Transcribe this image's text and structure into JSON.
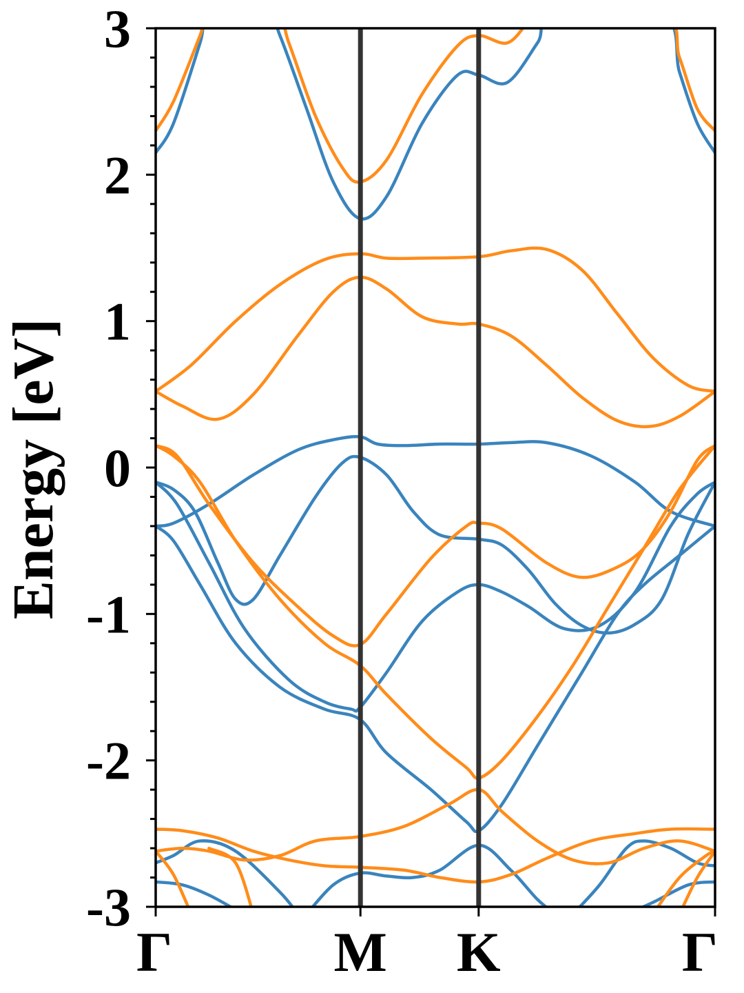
{
  "chart_data": {
    "type": "line",
    "title": "",
    "ylabel": "Energy [eV]",
    "xlabel": "",
    "ylim": [
      -3,
      3
    ],
    "xlim": [
      0,
      3.2
    ],
    "yticks": [
      "-3",
      "-2",
      "-1",
      "0",
      "1",
      "2",
      "3"
    ],
    "yminor_step": 0.2,
    "grid": false,
    "legend": "none",
    "kpoints": [
      {
        "label": "Γ",
        "x": 0
      },
      {
        "label": "M",
        "x": 1.1547
      },
      {
        "label": "K",
        "x": 1.8214
      },
      {
        "label": "Γ",
        "x": 3.1547
      }
    ],
    "colors": {
      "spin_up": "#3a84bd",
      "spin_down": "#ff8c1a",
      "kpath_line": "#333333"
    },
    "series": [
      {
        "group": "spin_up",
        "color": "#3a84bd",
        "points": [
          [
            0,
            2.15
          ],
          [
            0.1,
            2.35
          ],
          [
            0.25,
            2.9
          ],
          [
            0.3,
            3.1
          ],
          [
            0.6,
            3.2
          ],
          [
            0.7,
            2.95
          ],
          [
            0.85,
            2.45
          ],
          [
            1.0,
            1.95
          ],
          [
            1.15,
            1.7
          ],
          [
            1.3,
            1.85
          ],
          [
            1.5,
            2.35
          ],
          [
            1.7,
            2.68
          ],
          [
            1.82,
            2.68
          ],
          [
            1.98,
            2.63
          ],
          [
            2.15,
            2.9
          ],
          [
            2.25,
            3.1
          ],
          [
            2.85,
            3.1
          ],
          [
            2.95,
            2.7
          ],
          [
            3.05,
            2.35
          ],
          [
            3.15,
            2.15
          ]
        ]
      },
      {
        "group": "spin_up",
        "color": "#3a84bd",
        "points": [
          [
            0,
            -0.4
          ],
          [
            0.1,
            -0.38
          ],
          [
            0.3,
            -0.25
          ],
          [
            0.55,
            -0.05
          ],
          [
            0.8,
            0.12
          ],
          [
            1.0,
            0.19
          ],
          [
            1.15,
            0.21
          ],
          [
            1.25,
            0.16
          ],
          [
            1.4,
            0.15
          ],
          [
            1.6,
            0.16
          ],
          [
            1.82,
            0.16
          ],
          [
            2.0,
            0.17
          ],
          [
            2.2,
            0.17
          ],
          [
            2.45,
            0.08
          ],
          [
            2.7,
            -0.1
          ],
          [
            2.9,
            -0.3
          ],
          [
            3.15,
            -0.4
          ]
        ]
      },
      {
        "group": "spin_up",
        "color": "#3a84bd",
        "points": [
          [
            0,
            -0.1
          ],
          [
            0.1,
            -0.15
          ],
          [
            0.22,
            -0.3
          ],
          [
            0.35,
            -0.65
          ],
          [
            0.45,
            -0.9
          ],
          [
            0.55,
            -0.9
          ],
          [
            0.7,
            -0.6
          ],
          [
            0.9,
            -0.2
          ],
          [
            1.05,
            0.03
          ],
          [
            1.15,
            0.07
          ],
          [
            1.3,
            -0.05
          ],
          [
            1.45,
            -0.3
          ],
          [
            1.6,
            -0.46
          ],
          [
            1.82,
            -0.49
          ],
          [
            1.95,
            -0.53
          ],
          [
            2.1,
            -0.7
          ],
          [
            2.25,
            -0.93
          ],
          [
            2.4,
            -1.08
          ],
          [
            2.55,
            -1.13
          ],
          [
            2.7,
            -1.07
          ],
          [
            2.85,
            -0.9
          ],
          [
            3.0,
            -0.45
          ],
          [
            3.15,
            -0.1
          ]
        ]
      },
      {
        "group": "spin_up",
        "color": "#3a84bd",
        "points": [
          [
            0,
            -0.1
          ],
          [
            0.12,
            -0.25
          ],
          [
            0.3,
            -0.65
          ],
          [
            0.5,
            -1.1
          ],
          [
            0.75,
            -1.45
          ],
          [
            0.95,
            -1.6
          ],
          [
            1.1,
            -1.65
          ],
          [
            1.15,
            -1.64
          ],
          [
            1.3,
            -1.4
          ],
          [
            1.5,
            -1.05
          ],
          [
            1.7,
            -0.85
          ],
          [
            1.82,
            -0.8
          ],
          [
            1.95,
            -0.85
          ],
          [
            2.1,
            -0.95
          ],
          [
            2.3,
            -1.1
          ],
          [
            2.5,
            -1.08
          ],
          [
            2.7,
            -0.85
          ],
          [
            2.9,
            -0.4
          ],
          [
            3.05,
            -0.18
          ],
          [
            3.15,
            -0.1
          ]
        ]
      },
      {
        "group": "spin_up",
        "color": "#3a84bd",
        "points": [
          [
            0,
            -0.4
          ],
          [
            0.1,
            -0.5
          ],
          [
            0.25,
            -0.8
          ],
          [
            0.45,
            -1.2
          ],
          [
            0.7,
            -1.5
          ],
          [
            0.95,
            -1.65
          ],
          [
            1.15,
            -1.72
          ],
          [
            1.3,
            -1.95
          ],
          [
            1.55,
            -2.2
          ],
          [
            1.75,
            -2.42
          ],
          [
            1.82,
            -2.48
          ],
          [
            1.95,
            -2.3
          ],
          [
            2.15,
            -1.9
          ],
          [
            2.4,
            -1.4
          ],
          [
            2.6,
            -1.0
          ],
          [
            2.75,
            -0.8
          ],
          [
            2.95,
            -0.6
          ],
          [
            3.15,
            -0.4
          ]
        ]
      },
      {
        "group": "spin_up",
        "color": "#3a84bd",
        "points": [
          [
            0,
            -2.7
          ],
          [
            0.1,
            -2.65
          ],
          [
            0.25,
            -2.55
          ],
          [
            0.45,
            -2.62
          ],
          [
            0.7,
            -2.9
          ],
          [
            0.8,
            -3.05
          ]
        ]
      },
      {
        "group": "spin_up",
        "color": "#3a84bd",
        "points": [
          [
            0,
            -2.83
          ],
          [
            0.15,
            -2.85
          ],
          [
            0.3,
            -2.92
          ],
          [
            0.45,
            -3.02
          ]
        ]
      },
      {
        "group": "spin_up",
        "color": "#3a84bd",
        "points": [
          [
            0.85,
            -3.05
          ],
          [
            1.0,
            -2.85
          ],
          [
            1.15,
            -2.77
          ],
          [
            1.3,
            -2.79
          ],
          [
            1.45,
            -2.8
          ],
          [
            1.6,
            -2.75
          ],
          [
            1.82,
            -2.58
          ],
          [
            2.0,
            -2.75
          ],
          [
            2.15,
            -2.95
          ],
          [
            2.25,
            -3.05
          ]
        ]
      },
      {
        "group": "spin_up",
        "color": "#3a84bd",
        "points": [
          [
            2.35,
            -3.05
          ],
          [
            2.5,
            -2.85
          ],
          [
            2.65,
            -2.6
          ],
          [
            2.75,
            -2.55
          ],
          [
            2.9,
            -2.6
          ],
          [
            3.05,
            -2.7
          ],
          [
            3.15,
            -2.72
          ]
        ]
      },
      {
        "group": "spin_up",
        "color": "#3a84bd",
        "points": [
          [
            2.65,
            -3.05
          ],
          [
            2.8,
            -2.97
          ],
          [
            3.0,
            -2.85
          ],
          [
            3.15,
            -2.83
          ]
        ]
      },
      {
        "group": "spin_down",
        "color": "#ff8c1a",
        "points": [
          [
            0,
            2.3
          ],
          [
            0.1,
            2.5
          ],
          [
            0.25,
            2.95
          ],
          [
            0.3,
            3.1
          ],
          [
            0.65,
            3.2
          ],
          [
            0.75,
            2.9
          ],
          [
            0.9,
            2.4
          ],
          [
            1.05,
            2.05
          ],
          [
            1.15,
            1.95
          ],
          [
            1.3,
            2.1
          ],
          [
            1.5,
            2.55
          ],
          [
            1.7,
            2.88
          ],
          [
            1.82,
            2.95
          ],
          [
            1.98,
            2.9
          ],
          [
            2.1,
            3.05
          ],
          [
            2.2,
            3.2
          ],
          [
            2.85,
            3.1
          ],
          [
            2.95,
            2.8
          ],
          [
            3.05,
            2.45
          ],
          [
            3.15,
            2.3
          ]
        ]
      },
      {
        "group": "spin_down",
        "color": "#ff8c1a",
        "points": [
          [
            0,
            0.52
          ],
          [
            0.2,
            0.7
          ],
          [
            0.45,
            1.0
          ],
          [
            0.7,
            1.25
          ],
          [
            0.95,
            1.42
          ],
          [
            1.15,
            1.46
          ],
          [
            1.3,
            1.43
          ],
          [
            1.5,
            1.43
          ],
          [
            1.82,
            1.44
          ],
          [
            2.0,
            1.48
          ],
          [
            2.2,
            1.49
          ],
          [
            2.4,
            1.35
          ],
          [
            2.6,
            1.05
          ],
          [
            2.8,
            0.75
          ],
          [
            3.0,
            0.56
          ],
          [
            3.15,
            0.52
          ]
        ]
      },
      {
        "group": "spin_down",
        "color": "#ff8c1a",
        "points": [
          [
            0,
            0.52
          ],
          [
            0.15,
            0.42
          ],
          [
            0.35,
            0.33
          ],
          [
            0.55,
            0.5
          ],
          [
            0.8,
            0.9
          ],
          [
            1.0,
            1.2
          ],
          [
            1.15,
            1.3
          ],
          [
            1.3,
            1.22
          ],
          [
            1.5,
            1.03
          ],
          [
            1.7,
            0.98
          ],
          [
            1.82,
            0.98
          ],
          [
            2.0,
            0.9
          ],
          [
            2.2,
            0.7
          ],
          [
            2.4,
            0.48
          ],
          [
            2.6,
            0.32
          ],
          [
            2.78,
            0.28
          ],
          [
            2.95,
            0.35
          ],
          [
            3.15,
            0.52
          ]
        ]
      },
      {
        "group": "spin_down",
        "color": "#ff8c1a",
        "points": [
          [
            0,
            0.15
          ],
          [
            0.12,
            0.08
          ],
          [
            0.3,
            -0.25
          ],
          [
            0.55,
            -0.65
          ],
          [
            0.8,
            -0.95
          ],
          [
            1.0,
            -1.15
          ],
          [
            1.15,
            -1.21
          ],
          [
            1.3,
            -1.0
          ],
          [
            1.55,
            -0.62
          ],
          [
            1.75,
            -0.4
          ],
          [
            1.82,
            -0.38
          ],
          [
            1.95,
            -0.42
          ],
          [
            2.2,
            -0.65
          ],
          [
            2.4,
            -0.75
          ],
          [
            2.6,
            -0.68
          ],
          [
            2.75,
            -0.55
          ],
          [
            2.9,
            -0.3
          ],
          [
            3.05,
            0.05
          ],
          [
            3.15,
            0.15
          ]
        ]
      },
      {
        "group": "spin_down",
        "color": "#ff8c1a",
        "points": [
          [
            0,
            0.15
          ],
          [
            0.1,
            0.08
          ],
          [
            0.25,
            -0.1
          ],
          [
            0.45,
            -0.5
          ],
          [
            0.7,
            -0.9
          ],
          [
            0.95,
            -1.2
          ],
          [
            1.15,
            -1.35
          ],
          [
            1.3,
            -1.55
          ],
          [
            1.55,
            -1.85
          ],
          [
            1.75,
            -2.05
          ],
          [
            1.82,
            -2.12
          ],
          [
            1.95,
            -2.0
          ],
          [
            2.15,
            -1.7
          ],
          [
            2.35,
            -1.35
          ],
          [
            2.55,
            -0.95
          ],
          [
            2.75,
            -0.55
          ],
          [
            2.95,
            -0.15
          ],
          [
            3.15,
            0.15
          ]
        ]
      },
      {
        "group": "spin_down",
        "color": "#ff8c1a",
        "points": [
          [
            0,
            -2.47
          ],
          [
            0.15,
            -2.48
          ],
          [
            0.35,
            -2.53
          ],
          [
            0.55,
            -2.62
          ],
          [
            0.75,
            -2.68
          ],
          [
            0.95,
            -2.72
          ],
          [
            1.15,
            -2.73
          ],
          [
            1.4,
            -2.75
          ],
          [
            1.6,
            -2.8
          ],
          [
            1.82,
            -2.83
          ],
          [
            2.0,
            -2.78
          ],
          [
            2.2,
            -2.67
          ],
          [
            2.45,
            -2.55
          ],
          [
            2.7,
            -2.5
          ],
          [
            2.9,
            -2.47
          ],
          [
            3.15,
            -2.47
          ]
        ]
      },
      {
        "group": "spin_down",
        "color": "#ff8c1a",
        "points": [
          [
            0,
            -2.62
          ],
          [
            0.15,
            -2.6
          ],
          [
            0.3,
            -2.62
          ],
          [
            0.5,
            -2.68
          ],
          [
            0.7,
            -2.65
          ],
          [
            0.9,
            -2.55
          ],
          [
            1.15,
            -2.52
          ],
          [
            1.4,
            -2.45
          ],
          [
            1.65,
            -2.3
          ],
          [
            1.82,
            -2.2
          ],
          [
            1.95,
            -2.35
          ],
          [
            2.15,
            -2.55
          ],
          [
            2.35,
            -2.68
          ],
          [
            2.55,
            -2.7
          ],
          [
            2.75,
            -2.6
          ],
          [
            2.95,
            -2.55
          ],
          [
            3.15,
            -2.62
          ]
        ]
      },
      {
        "group": "spin_down",
        "color": "#ff8c1a",
        "points": [
          [
            0,
            -2.62
          ],
          [
            0.1,
            -2.78
          ],
          [
            0.2,
            -3.05
          ]
        ]
      },
      {
        "group": "spin_down",
        "color": "#ff8c1a",
        "points": [
          [
            0.3,
            -2.6
          ],
          [
            0.45,
            -2.7
          ],
          [
            0.55,
            -3.05
          ]
        ]
      },
      {
        "group": "spin_down",
        "color": "#ff8c1a",
        "points": [
          [
            2.95,
            -3.05
          ],
          [
            3.05,
            -2.8
          ],
          [
            3.15,
            -2.62
          ]
        ]
      },
      {
        "group": "spin_down",
        "color": "#ff8c1a",
        "points": [
          [
            2.8,
            -3.05
          ],
          [
            2.95,
            -2.8
          ],
          [
            3.1,
            -2.65
          ],
          [
            3.15,
            -2.62
          ]
        ]
      }
    ]
  }
}
